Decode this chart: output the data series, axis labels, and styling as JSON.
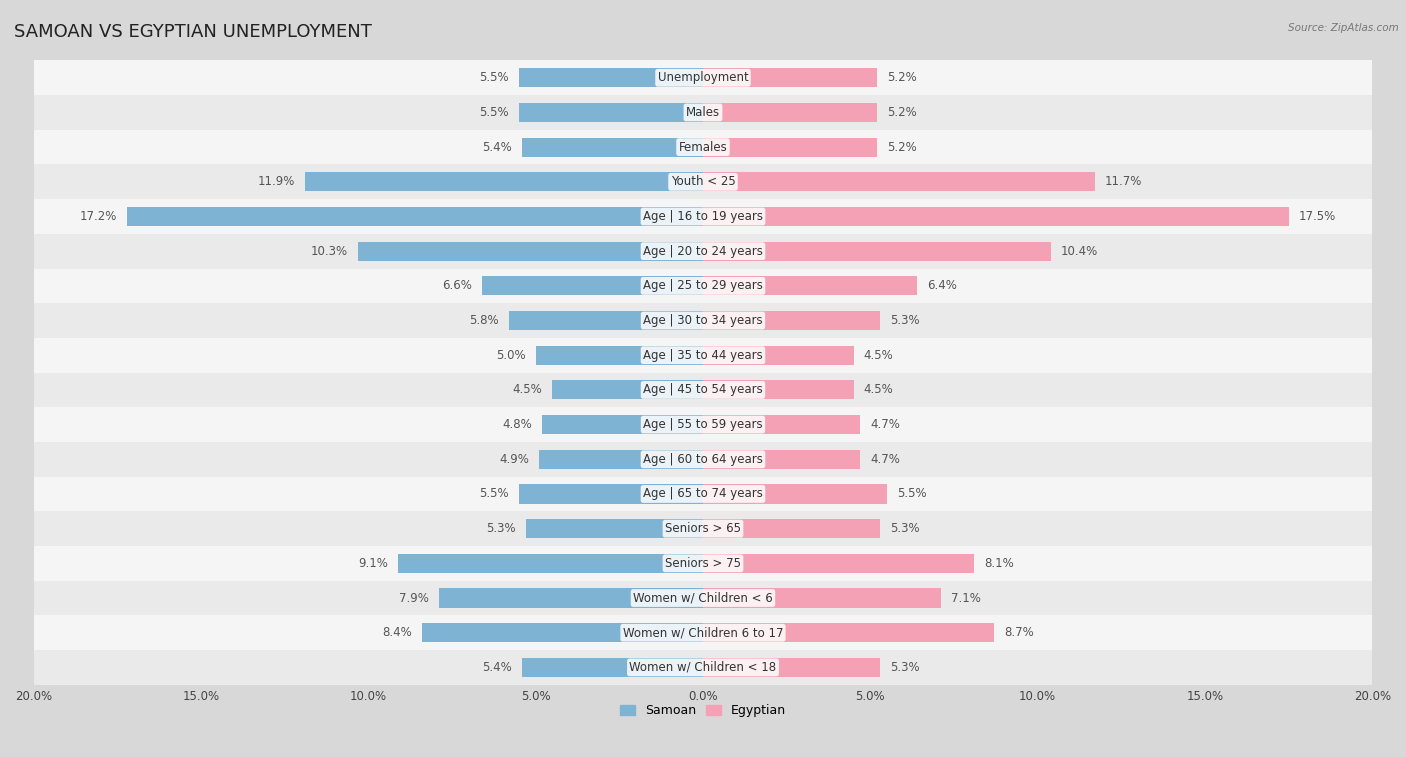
{
  "title": "SAMOAN VS EGYPTIAN UNEMPLOYMENT",
  "source": "Source: ZipAtlas.com",
  "categories": [
    "Unemployment",
    "Males",
    "Females",
    "Youth < 25",
    "Age | 16 to 19 years",
    "Age | 20 to 24 years",
    "Age | 25 to 29 years",
    "Age | 30 to 34 years",
    "Age | 35 to 44 years",
    "Age | 45 to 54 years",
    "Age | 55 to 59 years",
    "Age | 60 to 64 years",
    "Age | 65 to 74 years",
    "Seniors > 65",
    "Seniors > 75",
    "Women w/ Children < 6",
    "Women w/ Children 6 to 17",
    "Women w/ Children < 18"
  ],
  "samoan": [
    5.5,
    5.5,
    5.4,
    11.9,
    17.2,
    10.3,
    6.6,
    5.8,
    5.0,
    4.5,
    4.8,
    4.9,
    5.5,
    5.3,
    9.1,
    7.9,
    8.4,
    5.4
  ],
  "egyptian": [
    5.2,
    5.2,
    5.2,
    11.7,
    17.5,
    10.4,
    6.4,
    5.3,
    4.5,
    4.5,
    4.7,
    4.7,
    5.5,
    5.3,
    8.1,
    7.1,
    8.7,
    5.3
  ],
  "samoan_color": "#7fb3d3",
  "egyptian_color": "#f4a0b5",
  "row_bg_colors": [
    "#f5f5f5",
    "#eaeaea"
  ],
  "outer_bg": "#d8d8d8",
  "bar_height": 0.55,
  "xlim": 20.0,
  "label_fontsize": 8.5,
  "category_fontsize": 8.5,
  "title_fontsize": 13,
  "legend_labels": [
    "Samoan",
    "Egyptian"
  ],
  "xtick_fontsize": 8.5
}
